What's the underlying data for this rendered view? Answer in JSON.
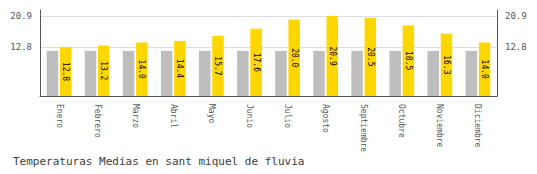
{
  "chart_data": {
    "type": "bar",
    "title": "Temperaturas Medias en sant miquel de fluvia",
    "categories": [
      "Enero",
      "Febrero",
      "Marzo",
      "Abril",
      "Mayo",
      "Junio",
      "Julio",
      "Agosto",
      "Septiembre",
      "Octubre",
      "Noviembre",
      "Diciembre"
    ],
    "series": [
      {
        "color": "#BEBEBE",
        "values": [
          11.8,
          11.8,
          11.8,
          11.8,
          11.8,
          11.8,
          11.8,
          11.8,
          11.8,
          11.8,
          11.8,
          11.8
        ]
      },
      {
        "color": "#FFD700",
        "values": [
          12.8,
          13.2,
          14.0,
          14.4,
          15.7,
          17.6,
          20.0,
          20.9,
          20.5,
          18.5,
          16.3,
          14.0
        ],
        "data_labels": true,
        "value_labels": [
          "12.8",
          "13.2",
          "14.0",
          "14.4",
          "15.7",
          "17.6",
          "20.0",
          "20.9",
          "20.5",
          "18.5",
          "16.3",
          "14.0"
        ]
      }
    ],
    "ylim": [
      0,
      22.5
    ],
    "yticks": [
      12.8,
      20.9
    ],
    "y2lim": [
      0,
      22.5
    ],
    "y2ticks": [
      12.8,
      20.9
    ],
    "grid": true
  }
}
